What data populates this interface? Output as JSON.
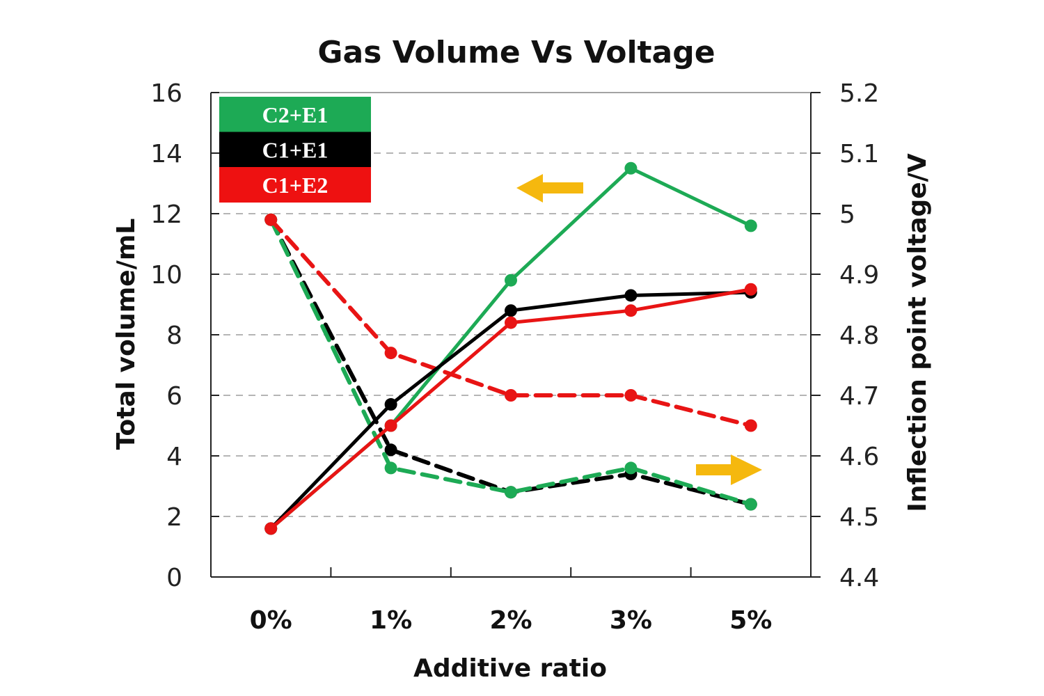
{
  "chart_data": {
    "type": "line",
    "title": "Gas Volume Vs Voltage",
    "xlabel": "Additive ratio",
    "ylabel": "Total volume/mL",
    "y2label": "Inflection point voltage/V",
    "categories": [
      "0%",
      "1%",
      "2%",
      "3%",
      "5%"
    ],
    "ylim": [
      0,
      16
    ],
    "yticks": [
      "0",
      "2",
      "4",
      "6",
      "8",
      "10",
      "12",
      "14",
      "16"
    ],
    "y2lim": [
      4.4,
      5.2
    ],
    "y2ticks": [
      "4.4",
      "4.5",
      "4.6",
      "4.7",
      "4.8",
      "4.9",
      "5",
      "5.1",
      "5.2"
    ],
    "grid": true,
    "legend_position": "top-left",
    "legend": [
      {
        "name": "C2+E1",
        "color": "#1daa55"
      },
      {
        "name": "C1+E1",
        "color": "#000000"
      },
      {
        "name": "C1+E2",
        "color": "#ee1111"
      }
    ],
    "series": [
      {
        "name": "C1+E2",
        "kind": "volume",
        "axis": "left",
        "style": "solid",
        "color": "#e81414",
        "values": [
          1.6,
          5.0,
          8.4,
          8.8,
          9.5
        ]
      },
      {
        "name": "C1+E1",
        "kind": "volume",
        "axis": "left",
        "style": "solid",
        "color": "#000000",
        "values": [
          1.6,
          5.7,
          8.8,
          9.3,
          9.4
        ]
      },
      {
        "name": "C2+E1",
        "kind": "volume",
        "axis": "left",
        "style": "solid",
        "color": "#1daa55",
        "values": [
          1.6,
          5.0,
          9.8,
          13.5,
          11.6
        ]
      },
      {
        "name": "C1+E2",
        "kind": "voltage",
        "axis": "right",
        "style": "dashed",
        "color": "#e81414",
        "values": [
          4.99,
          4.77,
          4.7,
          4.7,
          4.65
        ]
      },
      {
        "name": "C1+E1",
        "kind": "voltage",
        "axis": "right",
        "style": "dashed",
        "color": "#000000",
        "values": [
          4.99,
          4.61,
          4.54,
          4.57,
          4.52
        ]
      },
      {
        "name": "C2+E1",
        "kind": "voltage",
        "axis": "right",
        "style": "dashed",
        "color": "#1daa55",
        "values": [
          4.99,
          4.58,
          4.54,
          4.58,
          4.52
        ]
      }
    ],
    "annotations": [
      {
        "type": "arrow",
        "direction": "left",
        "meaning": "solid lines read on left axis",
        "color": "#f5b80e"
      },
      {
        "type": "arrow",
        "direction": "right",
        "meaning": "dashed lines read on right axis",
        "color": "#f5b80e"
      }
    ]
  }
}
